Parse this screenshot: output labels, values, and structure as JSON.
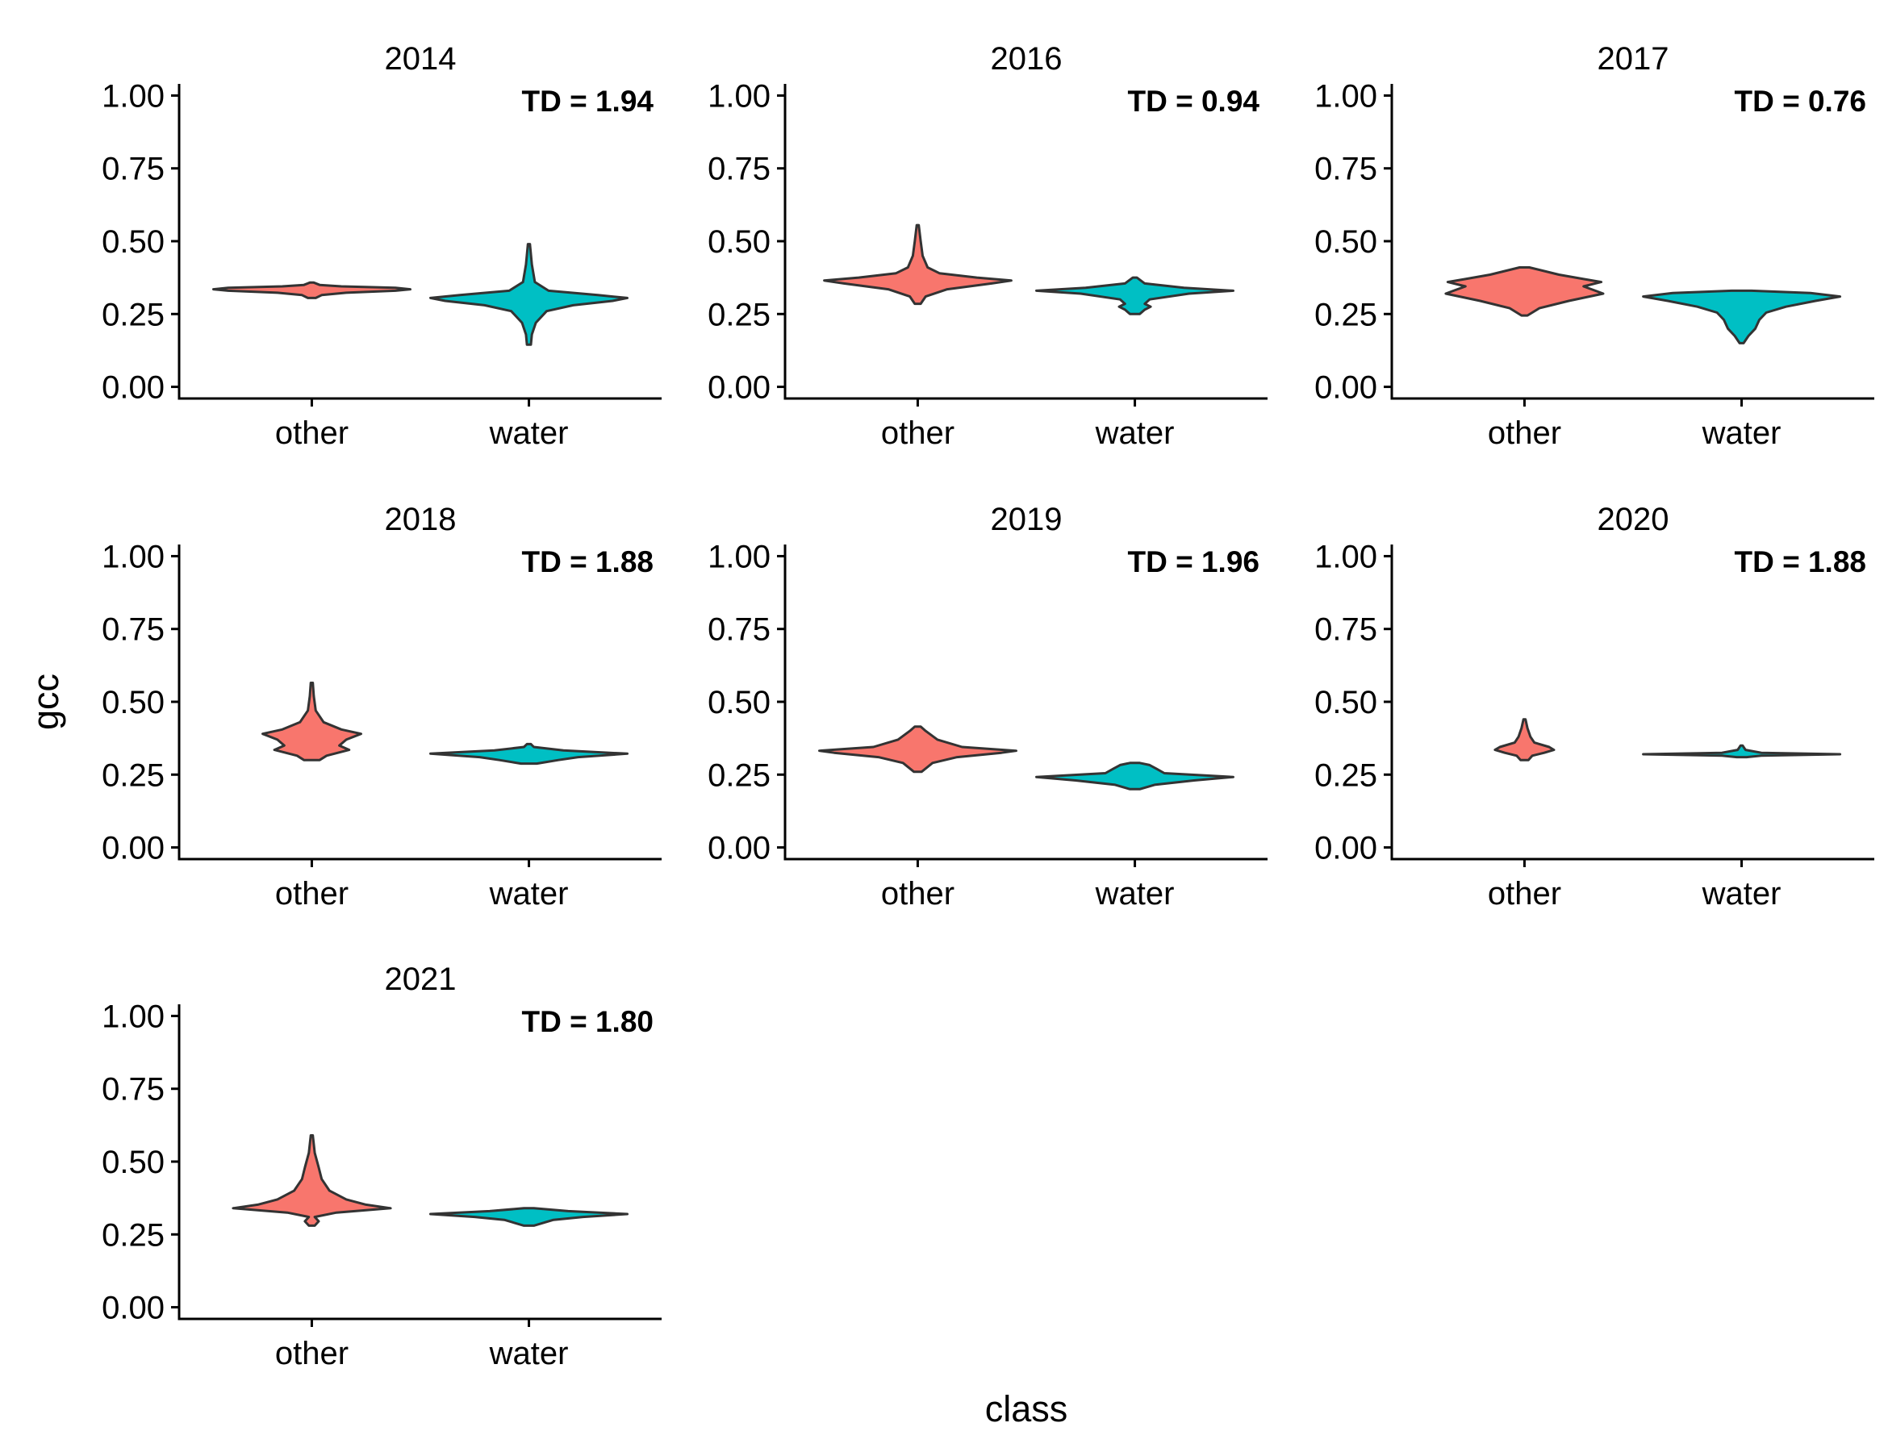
{
  "chart_data": {
    "type": "violin",
    "xlabel": "class",
    "ylabel": "gcc",
    "categories": [
      "other",
      "water"
    ],
    "ylim": [
      -0.04,
      1.04
    ],
    "yticks": [
      0,
      0.25,
      0.5,
      0.75,
      1
    ],
    "ytick_labels": [
      "0.00",
      "0.25",
      "0.50",
      "0.75",
      "1.00"
    ],
    "grid": false,
    "legend": "none",
    "colors": {
      "other": "#F8766D",
      "water": "#00BFC4",
      "outline": "#333333"
    },
    "panels": [
      {
        "title": "2014",
        "annotation": "TD = 1.94",
        "violins": [
          {
            "class": "other",
            "profile": [
              [
                0.305,
                0.04
              ],
              [
                0.315,
                0.1
              ],
              [
                0.323,
                0.35
              ],
              [
                0.33,
                0.85
              ],
              [
                0.335,
                1
              ],
              [
                0.34,
                0.85
              ],
              [
                0.345,
                0.3
              ],
              [
                0.35,
                0.08
              ],
              [
                0.358,
                0.02
              ]
            ]
          },
          {
            "class": "water",
            "profile": [
              [
                0.145,
                0.02
              ],
              [
                0.18,
                0.03
              ],
              [
                0.22,
                0.07
              ],
              [
                0.26,
                0.18
              ],
              [
                0.28,
                0.45
              ],
              [
                0.295,
                0.85
              ],
              [
                0.305,
                1
              ],
              [
                0.315,
                0.7
              ],
              [
                0.33,
                0.2
              ],
              [
                0.36,
                0.06
              ],
              [
                0.42,
                0.03
              ],
              [
                0.49,
                0.01
              ]
            ]
          }
        ]
      },
      {
        "title": "2016",
        "annotation": "TD = 0.94",
        "violins": [
          {
            "class": "other",
            "profile": [
              [
                0.285,
                0.03
              ],
              [
                0.31,
                0.08
              ],
              [
                0.335,
                0.3
              ],
              [
                0.355,
                0.75
              ],
              [
                0.365,
                0.95
              ],
              [
                0.375,
                0.6
              ],
              [
                0.39,
                0.22
              ],
              [
                0.41,
                0.1
              ],
              [
                0.45,
                0.05
              ],
              [
                0.5,
                0.03
              ],
              [
                0.555,
                0.01
              ]
            ]
          },
          {
            "class": "water",
            "profile": [
              [
                0.25,
                0.05
              ],
              [
                0.265,
                0.1
              ],
              [
                0.275,
                0.16
              ],
              [
                0.285,
                0.1
              ],
              [
                0.3,
                0.15
              ],
              [
                0.32,
                0.55
              ],
              [
                0.33,
                1
              ],
              [
                0.34,
                0.5
              ],
              [
                0.355,
                0.1
              ],
              [
                0.375,
                0.02
              ]
            ]
          }
        ]
      },
      {
        "title": "2017",
        "annotation": "TD = 0.76",
        "violins": [
          {
            "class": "other",
            "profile": [
              [
                0.245,
                0.03
              ],
              [
                0.27,
                0.15
              ],
              [
                0.295,
                0.45
              ],
              [
                0.32,
                0.8
              ],
              [
                0.33,
                0.72
              ],
              [
                0.345,
                0.6
              ],
              [
                0.36,
                0.78
              ],
              [
                0.37,
                0.6
              ],
              [
                0.385,
                0.35
              ],
              [
                0.41,
                0.05
              ]
            ]
          },
          {
            "class": "water",
            "profile": [
              [
                0.15,
                0.02
              ],
              [
                0.175,
                0.07
              ],
              [
                0.2,
                0.14
              ],
              [
                0.23,
                0.18
              ],
              [
                0.255,
                0.25
              ],
              [
                0.275,
                0.45
              ],
              [
                0.295,
                0.75
              ],
              [
                0.31,
                1
              ],
              [
                0.322,
                0.7
              ],
              [
                0.33,
                0.1
              ]
            ]
          }
        ]
      },
      {
        "title": "2018",
        "annotation": "TD = 1.88",
        "violins": [
          {
            "class": "other",
            "profile": [
              [
                0.3,
                0.08
              ],
              [
                0.315,
                0.15
              ],
              [
                0.335,
                0.38
              ],
              [
                0.35,
                0.28
              ],
              [
                0.37,
                0.35
              ],
              [
                0.39,
                0.5
              ],
              [
                0.405,
                0.3
              ],
              [
                0.43,
                0.12
              ],
              [
                0.47,
                0.04
              ],
              [
                0.52,
                0.02
              ],
              [
                0.565,
                0.01
              ]
            ]
          },
          {
            "class": "water",
            "profile": [
              [
                0.288,
                0.08
              ],
              [
                0.3,
                0.3
              ],
              [
                0.31,
                0.5
              ],
              [
                0.322,
                1
              ],
              [
                0.333,
                0.35
              ],
              [
                0.345,
                0.05
              ],
              [
                0.355,
                0.02
              ]
            ]
          }
        ]
      },
      {
        "title": "2019",
        "annotation": "TD = 1.96",
        "violins": [
          {
            "class": "other",
            "profile": [
              [
                0.26,
                0.04
              ],
              [
                0.29,
                0.15
              ],
              [
                0.31,
                0.4
              ],
              [
                0.325,
                0.85
              ],
              [
                0.332,
                1
              ],
              [
                0.345,
                0.45
              ],
              [
                0.37,
                0.2
              ],
              [
                0.4,
                0.08
              ],
              [
                0.415,
                0.03
              ]
            ]
          },
          {
            "class": "water",
            "profile": [
              [
                0.2,
                0.05
              ],
              [
                0.215,
                0.2
              ],
              [
                0.23,
                0.6
              ],
              [
                0.242,
                1
              ],
              [
                0.255,
                0.3
              ],
              [
                0.27,
                0.22
              ],
              [
                0.283,
                0.15
              ],
              [
                0.29,
                0.05
              ]
            ]
          }
        ]
      },
      {
        "title": "2020",
        "annotation": "TD = 1.88",
        "violins": [
          {
            "class": "other",
            "profile": [
              [
                0.3,
                0.04
              ],
              [
                0.315,
                0.08
              ],
              [
                0.325,
                0.2
              ],
              [
                0.335,
                0.3
              ],
              [
                0.345,
                0.25
              ],
              [
                0.36,
                0.1
              ],
              [
                0.38,
                0.06
              ],
              [
                0.41,
                0.03
              ],
              [
                0.44,
                0.01
              ]
            ]
          },
          {
            "class": "water",
            "profile": [
              [
                0.31,
                0.05
              ],
              [
                0.315,
                0.2
              ],
              [
                0.32,
                1
              ],
              [
                0.325,
                0.2
              ],
              [
                0.335,
                0.04
              ],
              [
                0.35,
                0.01
              ]
            ]
          }
        ]
      },
      {
        "title": "2021",
        "annotation": "TD = 1.80",
        "violins": [
          {
            "class": "other",
            "profile": [
              [
                0.28,
                0.03
              ],
              [
                0.295,
                0.07
              ],
              [
                0.31,
                0.03
              ],
              [
                0.325,
                0.25
              ],
              [
                0.34,
                0.8
              ],
              [
                0.352,
                0.55
              ],
              [
                0.37,
                0.35
              ],
              [
                0.4,
                0.18
              ],
              [
                0.44,
                0.1
              ],
              [
                0.48,
                0.07
              ],
              [
                0.53,
                0.03
              ],
              [
                0.59,
                0.01
              ]
            ]
          },
          {
            "class": "water",
            "profile": [
              [
                0.28,
                0.05
              ],
              [
                0.3,
                0.25
              ],
              [
                0.31,
                0.55
              ],
              [
                0.32,
                1
              ],
              [
                0.33,
                0.4
              ],
              [
                0.34,
                0.05
              ]
            ]
          }
        ]
      }
    ]
  }
}
